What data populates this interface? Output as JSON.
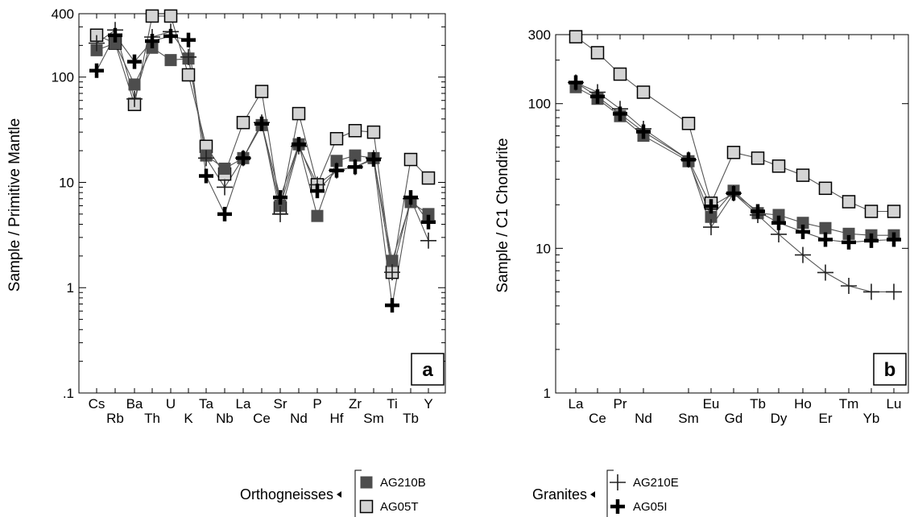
{
  "chart_data": [
    {
      "type": "line",
      "panel_label": "a",
      "ylabel": "Sample / Primitive Mantle",
      "xlabel": "",
      "yscale": "log",
      "ylim": [
        0.1,
        400
      ],
      "yticks": [
        {
          "value": 400,
          "label": "400"
        },
        {
          "value": 100,
          "label": "100"
        },
        {
          "value": 10,
          "label": "10"
        },
        {
          "value": 1,
          "label": "1"
        },
        {
          "value": 0.1,
          "label": ".1"
        }
      ],
      "categories": [
        "Cs",
        "Rb",
        "Ba",
        "Th",
        "U",
        "K",
        "Ta",
        "Nb",
        "La",
        "Ce",
        "Sr",
        "Nd",
        "P",
        "Hf",
        "Zr",
        "Sm",
        "Ti",
        "Tb",
        "Y"
      ],
      "series": [
        {
          "name": "AG210B",
          "values": [
            180,
            210,
            85,
            190,
            145,
            150,
            18,
            13.5,
            17,
            35,
            6,
            23,
            4.8,
            16,
            18,
            17,
            1.8,
            6.5,
            5
          ]
        },
        {
          "name": "AG05T",
          "values": [
            250,
            210,
            55,
            380,
            380,
            105,
            22,
            12,
            37,
            73,
            5.7,
            45,
            9.5,
            26,
            31,
            30,
            1.4,
            16.5,
            11
          ]
        },
        {
          "name": "AG210E",
          "values": [
            210,
            280,
            62,
            240,
            270,
            155,
            17,
            9,
            17,
            37,
            5,
            22,
            9.5,
            13,
            14,
            17,
            1.4,
            7,
            2.8
          ]
        },
        {
          "name": "AG05I",
          "values": [
            115,
            250,
            140,
            220,
            245,
            225,
            11.5,
            5,
            17,
            36,
            7.2,
            23,
            8.3,
            13,
            14,
            16.5,
            0.68,
            7.2,
            4.2
          ]
        }
      ]
    },
    {
      "type": "line",
      "panel_label": "b",
      "ylabel": "Sample / C1 Chondrite",
      "xlabel": "",
      "yscale": "log",
      "ylim": [
        1,
        300
      ],
      "yticks": [
        {
          "value": 300,
          "label": "300"
        },
        {
          "value": 100,
          "label": "100"
        },
        {
          "value": 10,
          "label": "10"
        },
        {
          "value": 1,
          "label": "1"
        }
      ],
      "categories": [
        "La",
        "Ce",
        "Pr",
        "Nd",
        "Sm",
        "Eu",
        "Gd",
        "Tb",
        "Dy",
        "Ho",
        "Er",
        "Tm",
        "Yb",
        "Lu"
      ],
      "series": [
        {
          "name": "AG210B",
          "values": [
            130,
            108,
            82,
            60,
            40,
            16.5,
            25,
            17.5,
            17,
            15,
            13.8,
            12.6,
            12.3,
            12.3
          ]
        },
        {
          "name": "AG05T",
          "values": [
            290,
            225,
            160,
            120,
            73,
            20.5,
            46,
            42,
            37,
            32,
            26,
            21,
            18,
            18
          ]
        },
        {
          "name": "AG210E",
          "values": [
            140,
            120,
            92,
            67,
            41,
            14,
            24,
            17,
            12.5,
            9,
            6.8,
            5.5,
            5,
            5
          ]
        },
        {
          "name": "AG05I",
          "values": [
            140,
            112,
            85,
            64,
            41,
            19.5,
            24,
            18,
            15,
            13,
            11.5,
            11,
            11.3,
            11.5
          ]
        }
      ]
    }
  ],
  "legend": {
    "groups": [
      {
        "name": "Orthogneisses",
        "items": [
          {
            "series": "AG210B",
            "label": "AG210B",
            "marker": "square-dark"
          },
          {
            "series": "AG05T",
            "label": "AG05T",
            "marker": "square-light"
          }
        ]
      },
      {
        "name": "Granites",
        "items": [
          {
            "series": "AG210E",
            "label": "AG210E",
            "marker": "plus-thin"
          },
          {
            "series": "AG05I",
            "label": "AG05I",
            "marker": "plus-bold"
          }
        ]
      }
    ]
  },
  "colors": {
    "dark_square": "#4d4d4d",
    "light_square": "#d4d4d4",
    "line": "#555555",
    "ink": "#000000"
  }
}
